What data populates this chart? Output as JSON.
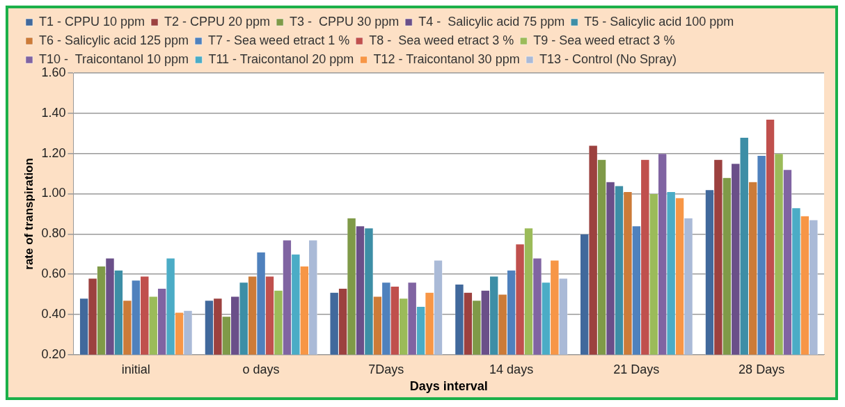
{
  "chart_data": {
    "type": "bar",
    "xlabel": "Days interval",
    "ylabel": "rate of transpiration",
    "categories": [
      "initial",
      "o days",
      "7Days",
      "14 days",
      "21 Days",
      "28 Days"
    ],
    "series": [
      {
        "name": "T1 - CPPU 10 ppm",
        "color": "#41699c",
        "values": [
          0.48,
          0.47,
          0.51,
          0.55,
          0.8,
          1.02
        ]
      },
      {
        "name": "T2 - CPPU 20 ppm",
        "color": "#9c413f",
        "values": [
          0.58,
          0.48,
          0.53,
          0.51,
          1.24,
          1.17
        ]
      },
      {
        "name": "T3 -  CPPU 30 ppm",
        "color": "#7f9a48",
        "values": [
          0.64,
          0.39,
          0.88,
          0.47,
          1.17,
          1.08
        ]
      },
      {
        "name": "T4 -  Salicylic acid 75 ppm",
        "color": "#6a4f89",
        "values": [
          0.68,
          0.49,
          0.84,
          0.52,
          1.06,
          1.15
        ]
      },
      {
        "name": "T5 - Salicylic acid 100 ppm",
        "color": "#3d8ea6",
        "values": [
          0.62,
          0.56,
          0.83,
          0.59,
          1.04,
          1.28
        ]
      },
      {
        "name": "T6 - Salicylic acid 125 ppm",
        "color": "#cc7b38",
        "values": [
          0.47,
          0.59,
          0.49,
          0.5,
          1.01,
          1.06
        ]
      },
      {
        "name": "T7 - Sea weed etract 1 %",
        "color": "#4f81bd",
        "values": [
          0.57,
          0.71,
          0.56,
          0.62,
          0.84,
          1.19
        ]
      },
      {
        "name": "T8 -  Sea weed etract 3 %",
        "color": "#c0504d",
        "values": [
          0.59,
          0.59,
          0.54,
          0.75,
          1.17,
          1.37
        ]
      },
      {
        "name": "T9 - Sea weed etract 3 %",
        "color": "#9bbb59",
        "values": [
          0.49,
          0.52,
          0.48,
          0.83,
          1.0,
          1.2
        ]
      },
      {
        "name": "T10 -  Traicontanol 10 ppm",
        "color": "#8064a2",
        "values": [
          0.53,
          0.77,
          0.56,
          0.68,
          1.2,
          1.12
        ]
      },
      {
        "name": "T11 - Traicontanol 20 ppm",
        "color": "#4bacc6",
        "values": [
          0.68,
          0.7,
          0.44,
          0.56,
          1.01,
          0.93
        ]
      },
      {
        "name": "T12 - Traicontanol 30 ppm",
        "color": "#f79646",
        "values": [
          0.41,
          0.64,
          0.51,
          0.67,
          0.98,
          0.89
        ]
      },
      {
        "name": "T13 - Control (No Spray)",
        "color": "#aabad7",
        "values": [
          0.42,
          0.77,
          0.67,
          0.58,
          0.88,
          0.87
        ]
      }
    ],
    "ylim": [
      0.2,
      1.6
    ],
    "yticks": [
      {
        "value": 0.2,
        "label": "0.20"
      },
      {
        "value": 0.4,
        "label": "0.40"
      },
      {
        "value": 0.6,
        "label": "0.60"
      },
      {
        "value": 0.8,
        "label": "0.80"
      },
      {
        "value": 1.0,
        "label": "1.00"
      },
      {
        "value": 1.2,
        "label": "1.20"
      },
      {
        "value": 1.4,
        "label": "1.40"
      },
      {
        "value": 1.6,
        "label": "1.60"
      }
    ],
    "grid": "y",
    "legend": "top"
  }
}
